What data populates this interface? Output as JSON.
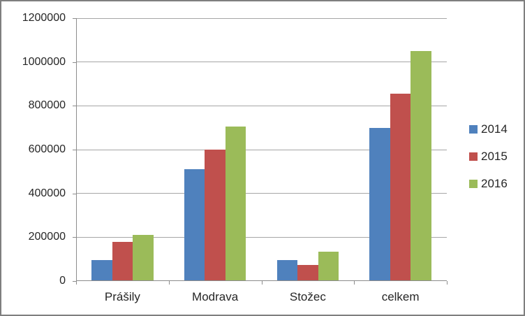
{
  "chart_data": {
    "type": "bar",
    "title": "",
    "categories": [
      "Prášily",
      "Modrava",
      "Stožec",
      "celkem"
    ],
    "series": [
      {
        "name": "2014",
        "color": "#4f81bd",
        "values": [
          95000,
          510000,
          95000,
          700000
        ]
      },
      {
        "name": "2015",
        "color": "#c0504d",
        "values": [
          180000,
          600000,
          75000,
          855000
        ]
      },
      {
        "name": "2016",
        "color": "#9bbb59",
        "values": [
          210000,
          705000,
          135000,
          1050000
        ]
      }
    ],
    "ylim": [
      0,
      1200000
    ],
    "y_tick_step": 200000,
    "y_tick_labels": [
      "0",
      "200000",
      "400000",
      "600000",
      "800000",
      "1000000",
      "1200000"
    ],
    "xlabel": "",
    "ylabel": "",
    "grid": true,
    "legend_position": "right",
    "gap_width_ratio": 1.5
  },
  "styles": {
    "series_colors": {
      "2014": "#4f81bd",
      "2015": "#c0504d",
      "2016": "#9bbb59"
    },
    "gridline_color": "#a6a6a6",
    "axis_color": "#8c8c8c",
    "text_color": "#262626",
    "frame_border_color": "#7f7f7f",
    "background_color": "#ffffff"
  }
}
